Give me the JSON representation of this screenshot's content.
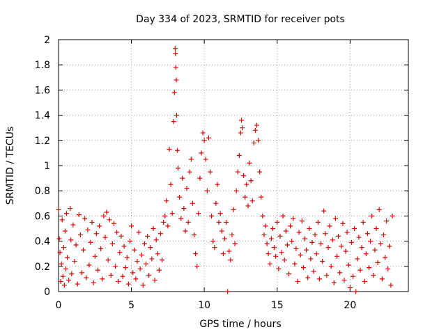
{
  "chart_data": {
    "type": "scatter",
    "title": "Day 334 of 2023, SRMTID for receiver pots",
    "xlabel": "GPS time / hours",
    "ylabel": "SRMTID / TECUs",
    "xlim": [
      0,
      24
    ],
    "ylim": [
      0,
      2
    ],
    "xticks": [
      0,
      5,
      10,
      15,
      20
    ],
    "xtick_labels": [
      "0",
      "5",
      "10",
      "15",
      "20"
    ],
    "yticks": [
      0,
      0.2,
      0.4,
      0.6,
      0.8,
      1,
      1.2,
      1.4,
      1.6,
      1.8,
      2
    ],
    "ytick_labels": [
      "0",
      "0.2",
      "0.4",
      "0.6",
      "0.8",
      "1",
      "1.2",
      "1.4",
      "1.6",
      "1.8",
      "2"
    ],
    "grid": true,
    "marker": "+",
    "color": "#dd0000",
    "series": [
      {
        "name": "SRMTID",
        "points": [
          [
            0.0,
            0.65
          ],
          [
            0.05,
            0.42
          ],
          [
            0.1,
            0.31
          ],
          [
            0.15,
            0.08
          ],
          [
            0.2,
            0.22
          ],
          [
            0.25,
            0.57
          ],
          [
            0.3,
            0.12
          ],
          [
            0.35,
            0.35
          ],
          [
            0.4,
            0.05
          ],
          [
            0.45,
            0.48
          ],
          [
            0.5,
            0.18
          ],
          [
            0.55,
            0.62
          ],
          [
            0.6,
            0.27
          ],
          [
            0.7,
            0.09
          ],
          [
            0.8,
            0.66
          ],
          [
            0.85,
            0.41
          ],
          [
            0.9,
            0.14
          ],
          [
            1.0,
            0.53
          ],
          [
            1.1,
            0.24
          ],
          [
            1.2,
            0.37
          ],
          [
            1.3,
            0.06
          ],
          [
            1.4,
            0.61
          ],
          [
            1.5,
            0.45
          ],
          [
            1.6,
            0.15
          ],
          [
            1.7,
            0.33
          ],
          [
            1.8,
            0.58
          ],
          [
            1.9,
            0.11
          ],
          [
            2.0,
            0.49
          ],
          [
            2.1,
            0.21
          ],
          [
            2.2,
            0.39
          ],
          [
            2.3,
            0.55
          ],
          [
            2.4,
            0.07
          ],
          [
            2.5,
            0.28
          ],
          [
            2.6,
            0.46
          ],
          [
            2.7,
            0.17
          ],
          [
            2.8,
            0.52
          ],
          [
            2.9,
            0.34
          ],
          [
            3.0,
            0.1
          ],
          [
            3.1,
            0.6
          ],
          [
            3.2,
            0.43
          ],
          [
            3.3,
            0.63
          ],
          [
            3.4,
            0.25
          ],
          [
            3.5,
            0.57
          ],
          [
            3.6,
            0.13
          ],
          [
            3.7,
            0.38
          ],
          [
            3.8,
            0.54
          ],
          [
            3.9,
            0.2
          ],
          [
            4.0,
            0.47
          ],
          [
            4.1,
            0.08
          ],
          [
            4.2,
            0.31
          ],
          [
            4.3,
            0.44
          ],
          [
            4.4,
            0.12
          ],
          [
            4.5,
            0.36
          ],
          [
            4.6,
            0.19
          ],
          [
            4.7,
            0.27
          ],
          [
            4.8,
            0.06
          ],
          [
            4.9,
            0.4
          ],
          [
            5.0,
            0.52
          ],
          [
            5.1,
            0.15
          ],
          [
            5.2,
            0.33
          ],
          [
            5.3,
            0.1
          ],
          [
            5.4,
            0.24
          ],
          [
            5.5,
            0.47
          ],
          [
            5.6,
            0.18
          ],
          [
            5.7,
            0.29
          ],
          [
            5.8,
            0.05
          ],
          [
            5.9,
            0.38
          ],
          [
            6.0,
            0.22
          ],
          [
            6.1,
            0.44
          ],
          [
            6.2,
            0.13
          ],
          [
            6.3,
            0.35
          ],
          [
            6.4,
            0.26
          ],
          [
            6.5,
            0.5
          ],
          [
            6.6,
            0.09
          ],
          [
            6.7,
            0.41
          ],
          [
            6.8,
            0.3
          ],
          [
            6.9,
            0.17
          ],
          [
            7.0,
            0.46
          ],
          [
            7.1,
            0.25
          ],
          [
            7.2,
            0.55
          ],
          [
            7.3,
            0.6
          ],
          [
            7.4,
            0.72
          ],
          [
            7.5,
            0.52
          ],
          [
            7.6,
            1.13
          ],
          [
            7.7,
            0.85
          ],
          [
            7.8,
            0.62
          ],
          [
            7.9,
            1.35
          ],
          [
            7.95,
            1.58
          ],
          [
            8.0,
            1.93
          ],
          [
            8.02,
            1.89
          ],
          [
            8.05,
            1.78
          ],
          [
            8.08,
            1.68
          ],
          [
            8.1,
            1.4
          ],
          [
            8.15,
            1.12
          ],
          [
            8.2,
            0.98
          ],
          [
            8.3,
            0.75
          ],
          [
            8.4,
            0.58
          ],
          [
            8.5,
            0.9
          ],
          [
            8.6,
            0.66
          ],
          [
            8.7,
            0.48
          ],
          [
            8.8,
            0.82
          ],
          [
            8.9,
            0.55
          ],
          [
            9.0,
            0.95
          ],
          [
            9.1,
            1.05
          ],
          [
            9.2,
            0.7
          ],
          [
            9.3,
            0.45
          ],
          [
            9.4,
            0.3
          ],
          [
            9.5,
            0.2
          ],
          [
            9.6,
            0.62
          ],
          [
            9.7,
            0.9
          ],
          [
            9.8,
            1.1
          ],
          [
            9.9,
            1.26
          ],
          [
            10.0,
            1.2
          ],
          [
            10.1,
            1.05
          ],
          [
            10.2,
            0.8
          ],
          [
            10.3,
            1.22
          ],
          [
            10.4,
            0.95
          ],
          [
            10.5,
            0.6
          ],
          [
            10.6,
            0.4
          ],
          [
            10.7,
            0.35
          ],
          [
            10.8,
            0.7
          ],
          [
            10.9,
            0.85
          ],
          [
            11.0,
            0.55
          ],
          [
            11.1,
            0.62
          ],
          [
            11.2,
            0.48
          ],
          [
            11.3,
            0.3
          ],
          [
            11.4,
            0.42
          ],
          [
            11.5,
            0.55
          ],
          [
            11.6,
            0.0
          ],
          [
            11.7,
            0.32
          ],
          [
            11.8,
            0.25
          ],
          [
            11.9,
            0.45
          ],
          [
            12.0,
            0.65
          ],
          [
            12.1,
            0.38
          ],
          [
            12.2,
            0.8
          ],
          [
            12.3,
            0.95
          ],
          [
            12.4,
            1.08
          ],
          [
            12.5,
            1.26
          ],
          [
            12.55,
            1.36
          ],
          [
            12.6,
            1.3
          ],
          [
            12.7,
            0.92
          ],
          [
            12.8,
            0.75
          ],
          [
            12.9,
            0.85
          ],
          [
            13.0,
            0.68
          ],
          [
            13.1,
            1.02
          ],
          [
            13.2,
            0.88
          ],
          [
            13.3,
            0.72
          ],
          [
            13.4,
            1.18
          ],
          [
            13.5,
            1.28
          ],
          [
            13.6,
            1.32
          ],
          [
            13.7,
            1.2
          ],
          [
            13.8,
            0.95
          ],
          [
            13.9,
            0.75
          ],
          [
            14.0,
            0.6
          ],
          [
            14.1,
            0.45
          ],
          [
            14.2,
            0.52
          ],
          [
            14.3,
            0.38
          ],
          [
            14.4,
            0.3
          ],
          [
            14.5,
            0.22
          ],
          [
            14.6,
            0.42
          ],
          [
            14.7,
            0.5
          ],
          [
            14.8,
            0.35
          ],
          [
            14.9,
            0.28
          ],
          [
            15.0,
            0.55
          ],
          [
            15.1,
            0.18
          ],
          [
            15.2,
            0.44
          ],
          [
            15.3,
            0.31
          ],
          [
            15.4,
            0.6
          ],
          [
            15.5,
            0.25
          ],
          [
            15.6,
            0.48
          ],
          [
            15.7,
            0.37
          ],
          [
            15.8,
            0.14
          ],
          [
            15.9,
            0.52
          ],
          [
            16.0,
            0.4
          ],
          [
            16.1,
            0.58
          ],
          [
            16.2,
            0.22
          ],
          [
            16.3,
            0.34
          ],
          [
            16.4,
            0.08
          ],
          [
            16.5,
            0.47
          ],
          [
            16.6,
            0.29
          ],
          [
            16.7,
            0.56
          ],
          [
            16.8,
            0.19
          ],
          [
            16.9,
            0.42
          ],
          [
            17.0,
            0.33
          ],
          [
            17.1,
            0.11
          ],
          [
            17.2,
            0.5
          ],
          [
            17.3,
            0.26
          ],
          [
            17.4,
            0.39
          ],
          [
            17.5,
            0.16
          ],
          [
            17.6,
            0.45
          ],
          [
            17.7,
            0.3
          ],
          [
            17.8,
            0.55
          ],
          [
            17.9,
            0.1
          ],
          [
            18.0,
            0.38
          ],
          [
            18.1,
            0.24
          ],
          [
            18.2,
            0.64
          ],
          [
            18.3,
            0.46
          ],
          [
            18.4,
            0.13
          ],
          [
            18.5,
            0.35
          ],
          [
            18.6,
            0.52
          ],
          [
            18.7,
            0.2
          ],
          [
            18.8,
            0.41
          ],
          [
            18.9,
            0.07
          ],
          [
            19.0,
            0.58
          ],
          [
            19.1,
            0.28
          ],
          [
            19.2,
            0.44
          ],
          [
            19.3,
            0.15
          ],
          [
            19.4,
            0.36
          ],
          [
            19.5,
            0.54
          ],
          [
            19.6,
            0.09
          ],
          [
            19.7,
            0.32
          ],
          [
            19.8,
            0.47
          ],
          [
            19.9,
            0.21
          ],
          [
            20.0,
            0.03
          ],
          [
            20.1,
            0.39
          ],
          [
            20.2,
            0.12
          ],
          [
            20.3,
            0.5
          ],
          [
            20.4,
            0.0
          ],
          [
            20.5,
            0.26
          ],
          [
            20.6,
            0.43
          ],
          [
            20.7,
            0.17
          ],
          [
            20.8,
            0.35
          ],
          [
            20.9,
            0.55
          ],
          [
            21.0,
            0.08
          ],
          [
            21.1,
            0.3
          ],
          [
            21.2,
            0.46
          ],
          [
            21.3,
            0.19
          ],
          [
            21.4,
            0.4
          ],
          [
            21.5,
            0.6
          ],
          [
            21.6,
            0.13
          ],
          [
            21.7,
            0.33
          ],
          [
            21.8,
            0.5
          ],
          [
            21.9,
            0.23
          ],
          [
            22.0,
            0.65
          ],
          [
            22.1,
            0.38
          ],
          [
            22.2,
            0.1
          ],
          [
            22.3,
            0.45
          ],
          [
            22.4,
            0.27
          ],
          [
            22.5,
            0.56
          ],
          [
            22.6,
            0.18
          ],
          [
            22.7,
            0.36
          ],
          [
            22.8,
            0.05
          ],
          [
            22.9,
            0.6
          ]
        ]
      }
    ]
  }
}
